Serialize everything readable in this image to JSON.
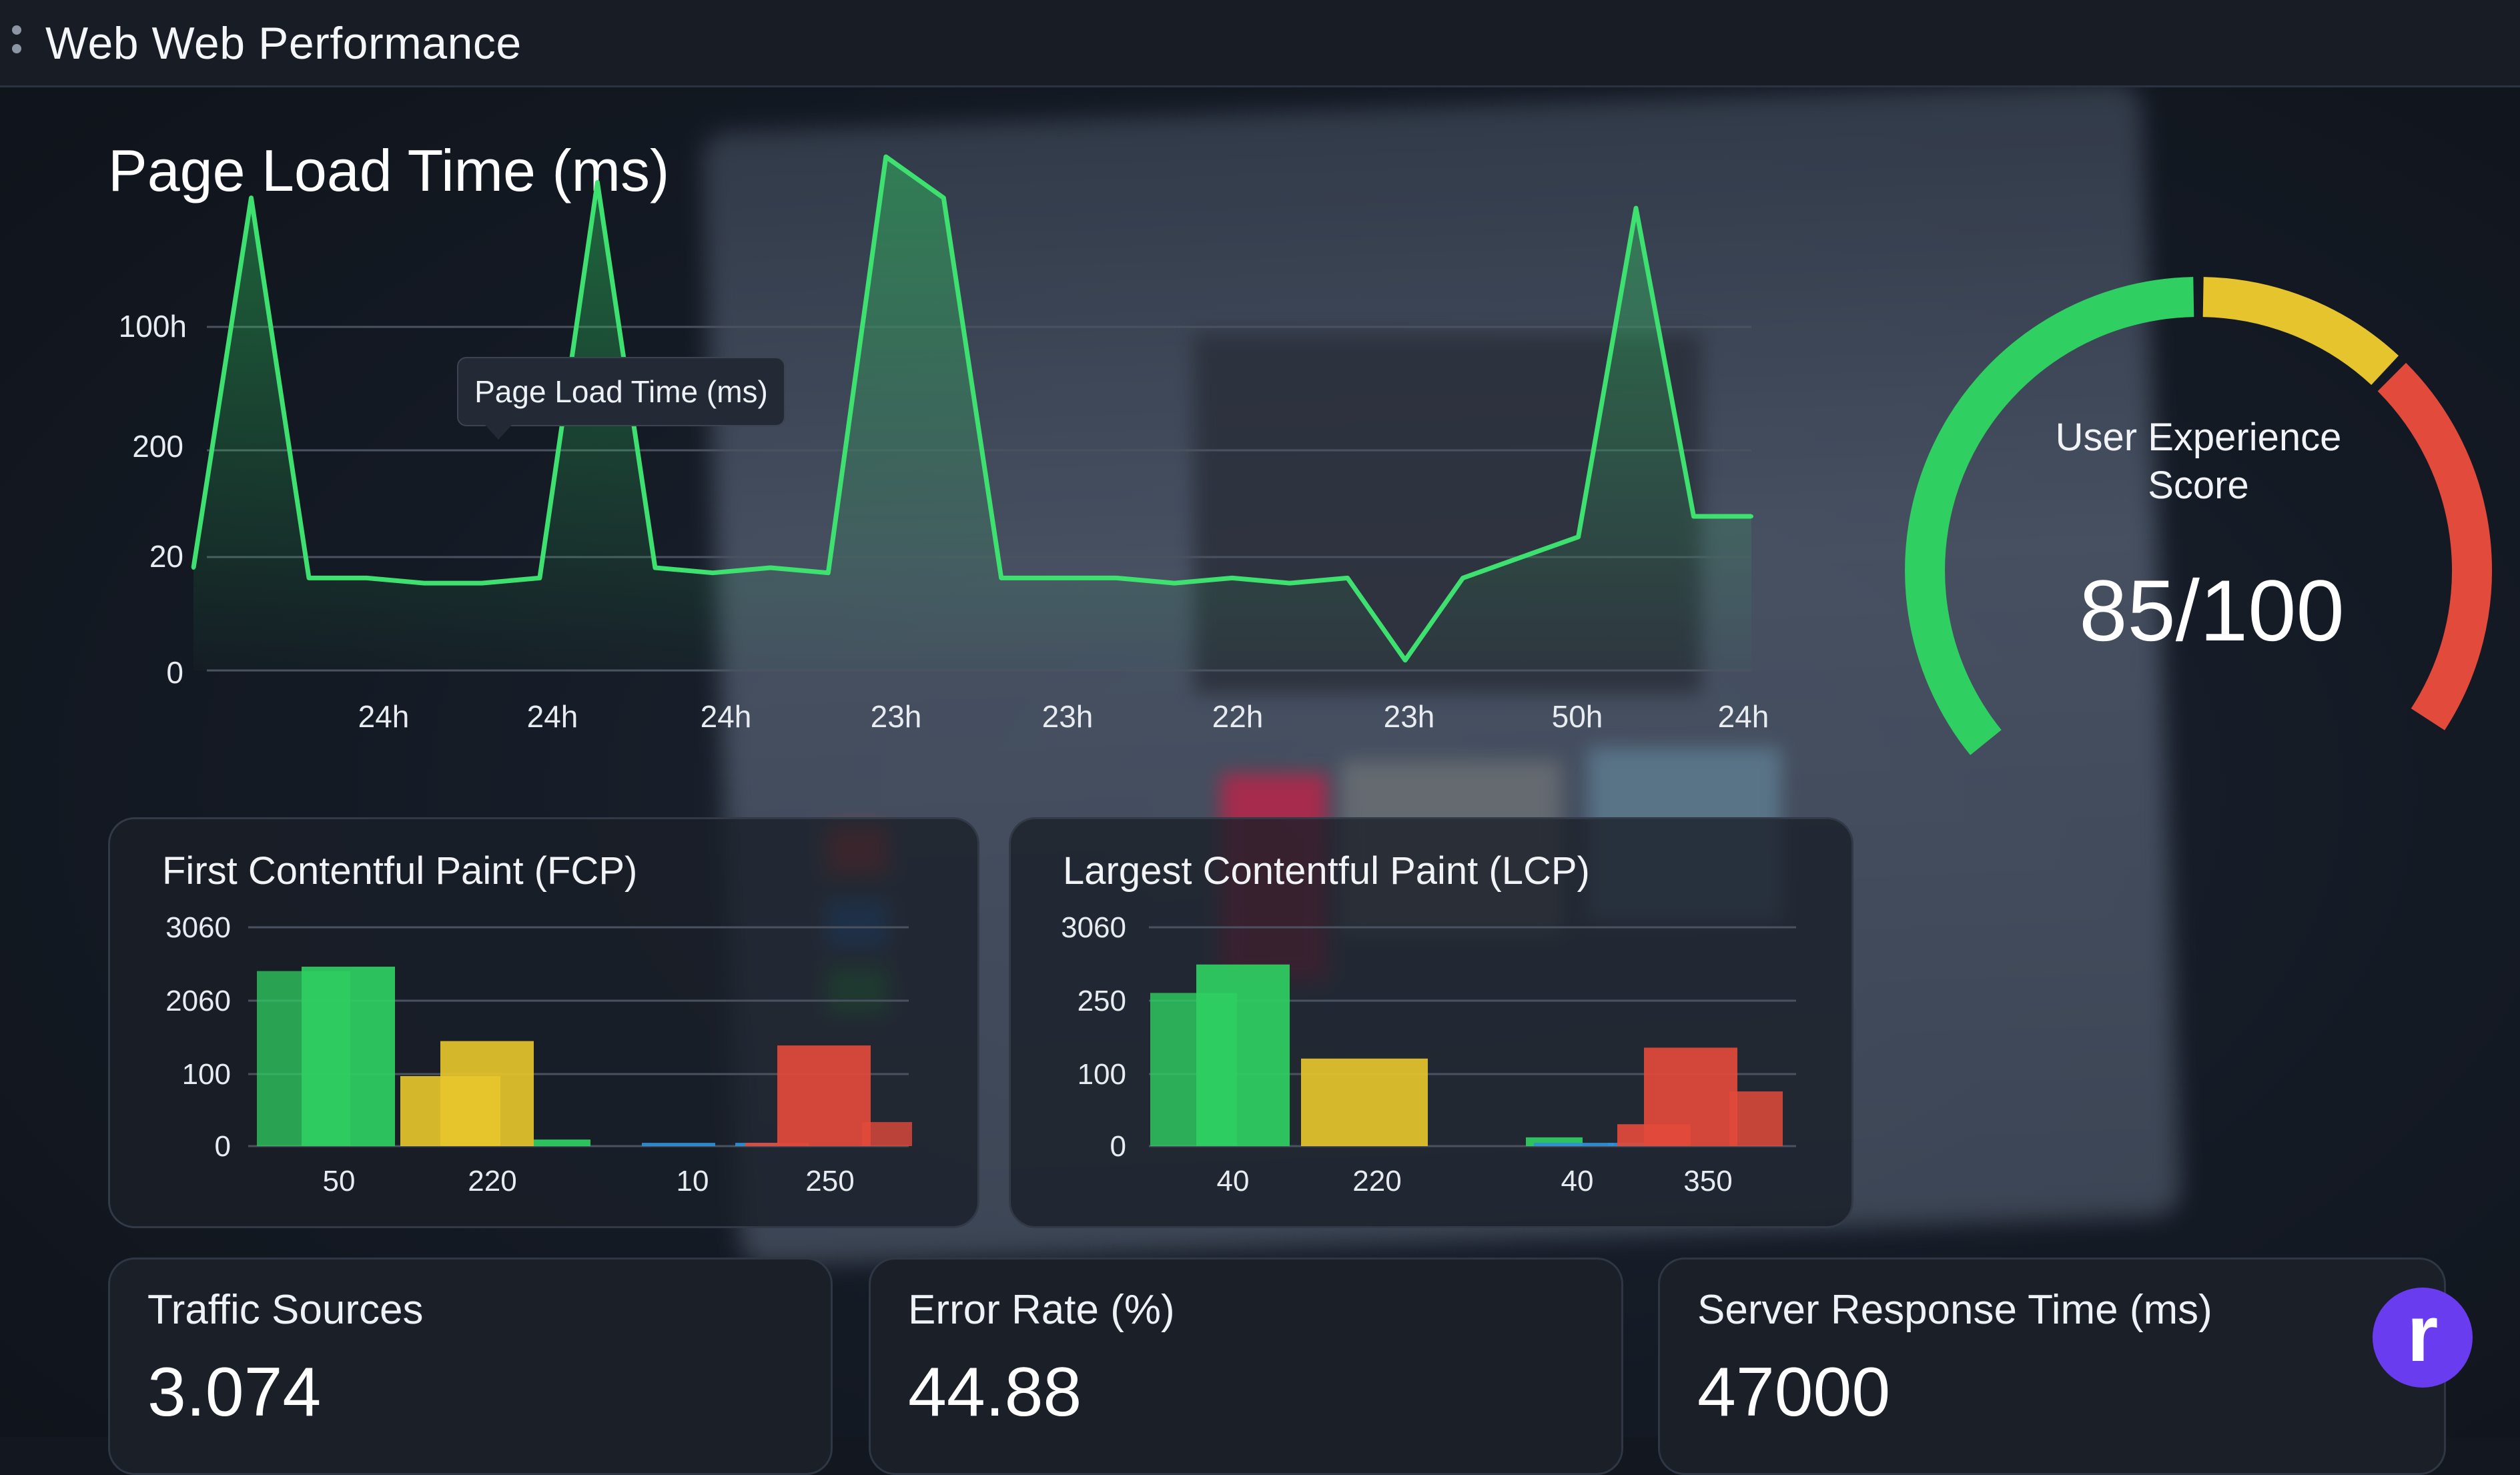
{
  "app": {
    "title": "Web Web Performance"
  },
  "page_load": {
    "title": "Page Load Time (ms)",
    "tooltip": "Page Load Time (ms)",
    "y_labels": [
      "100h",
      "200",
      "20",
      "0"
    ],
    "x_labels": [
      "24h",
      "24h",
      "24h",
      "23h",
      "23h",
      "22h",
      "23h",
      "50h",
      "24h"
    ]
  },
  "score": {
    "label_line1": "User Experience",
    "label_line2": "Score",
    "value": "85/100",
    "numeric": 85
  },
  "fcp": {
    "title": "First Contentful Paint (FCP)"
  },
  "lcp": {
    "title": "Largest Contentful Paint (LCP)"
  },
  "stats": [
    {
      "title": "Traffic Sources",
      "value": "3.074"
    },
    {
      "title": "Error Rate (%)",
      "value": "44.88"
    },
    {
      "title": "Server Response Time (ms)",
      "value": "47000"
    }
  ],
  "brand": {
    "letter": "r"
  },
  "colors": {
    "green": "#2fcf62",
    "yellow": "#e6c42d",
    "red": "#e24a3b",
    "blue": "#2e8fd8",
    "purple": "#6a3cf0"
  },
  "chart_data": [
    {
      "type": "line",
      "title": "Page Load Time (ms)",
      "y_tick_labels": [
        "100h",
        "200",
        "20",
        "0"
      ],
      "x_tick_labels": [
        "24h",
        "24h",
        "24h",
        "23h",
        "23h",
        "22h",
        "23h",
        "50h",
        "24h"
      ],
      "series": [
        {
          "values": [
            20,
            92,
            18,
            18,
            17,
            17,
            18,
            95,
            20,
            19,
            20,
            19,
            100,
            92,
            18,
            18,
            18,
            17,
            18,
            17,
            18,
            2,
            18,
            22,
            26,
            90,
            30,
            30
          ]
        }
      ],
      "grid": true
    },
    {
      "type": "bar",
      "title": "First Contentful Paint (FCP)",
      "y_tick_labels": [
        "3060",
        "2060",
        "100",
        "0"
      ],
      "x_tick_labels": [
        "50",
        "220",
        "10",
        "250"
      ],
      "series": [
        {
          "color": "green",
          "values": [
            80,
            82,
            3
          ]
        },
        {
          "color": "yellow",
          "values": [
            32,
            48
          ]
        },
        {
          "color": "blue",
          "values": [
            1.5,
            1.5
          ]
        },
        {
          "color": "red",
          "values": [
            1.5,
            46,
            11
          ]
        }
      ]
    },
    {
      "type": "bar",
      "title": "Largest Contentful Paint (LCP)",
      "y_tick_labels": [
        "3060",
        "250",
        "100",
        "0"
      ],
      "x_tick_labels": [
        "40",
        "220",
        "40",
        "350"
      ],
      "series": [
        {
          "color": "green",
          "values": [
            70,
            83,
            4
          ]
        },
        {
          "color": "yellow",
          "values": [
            40
          ]
        },
        {
          "color": "blue",
          "values": [
            1.5,
            1.5
          ]
        },
        {
          "color": "red",
          "values": [
            10,
            45,
            25
          ]
        }
      ]
    }
  ]
}
